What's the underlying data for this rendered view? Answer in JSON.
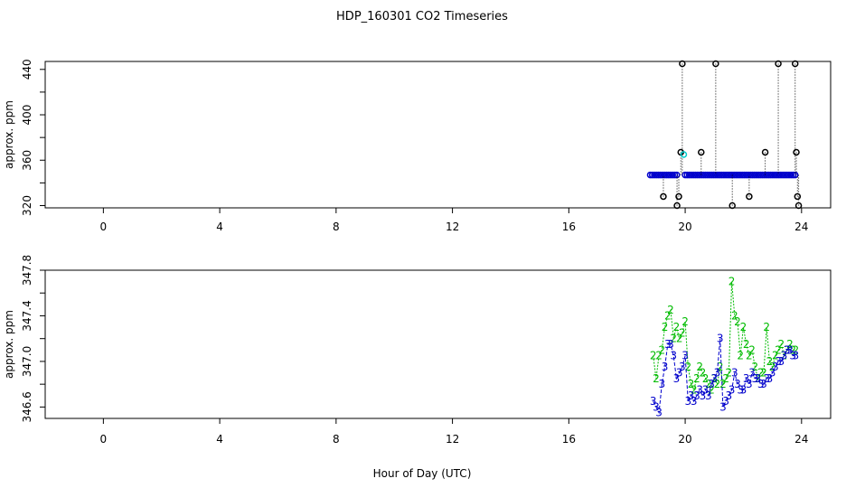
{
  "title": "HDP_160301  CO2 Timeseries",
  "xlabel": "Hour of Day (UTC)",
  "chart_data": [
    {
      "type": "scatter",
      "ylabel": "approx. ppm",
      "xlim": [
        -2,
        25
      ],
      "ylim": [
        318,
        447
      ],
      "xticks": [
        0,
        4,
        8,
        12,
        16,
        20,
        24
      ],
      "yticks": [
        320,
        360,
        400,
        440
      ],
      "ytick_minor": [
        340,
        380,
        420
      ],
      "series": [
        {
          "color": "#0000cc",
          "marker": "circle",
          "x": [
            18.8,
            18.87,
            18.94,
            19.01,
            19.08,
            19.15,
            19.22,
            19.29,
            19.36,
            19.43,
            19.5,
            19.57,
            19.64,
            19.71,
            20.0,
            20.07,
            20.14,
            20.21,
            20.28,
            20.35,
            20.42,
            20.49,
            20.56,
            20.63,
            20.7,
            20.77,
            20.84,
            20.91,
            20.98,
            21.05,
            21.12,
            21.19,
            21.26,
            21.33,
            21.4,
            21.47,
            21.54,
            21.61,
            21.68,
            21.75,
            21.82,
            21.89,
            21.96,
            22.03,
            22.1,
            22.17,
            22.24,
            22.31,
            22.38,
            22.45,
            22.52,
            22.59,
            22.66,
            22.73,
            22.8,
            22.87,
            22.94,
            23.01,
            23.08,
            23.15,
            23.22,
            23.29,
            23.36,
            23.43,
            23.5,
            23.57,
            23.64,
            23.71,
            23.78
          ],
          "y": [
            347,
            347,
            347,
            347,
            347,
            347,
            347,
            347,
            347,
            347,
            347,
            347,
            347,
            347,
            347,
            347,
            347,
            347,
            347,
            347,
            347,
            347,
            347,
            347,
            347,
            347,
            347,
            347,
            347,
            347,
            347,
            347,
            347,
            347,
            347,
            347,
            347,
            347,
            347,
            347,
            347,
            347,
            347,
            347,
            347,
            347,
            347,
            347,
            347,
            347,
            347,
            347,
            347,
            347,
            347,
            347,
            347,
            347,
            347,
            347,
            347,
            347,
            347,
            347,
            347,
            347,
            347,
            347,
            347
          ]
        },
        {
          "color": "#000000",
          "marker": "circle",
          "x": [
            19.25,
            19.72,
            19.78,
            19.85,
            19.9,
            20.55,
            21.05,
            21.62,
            22.2,
            22.75,
            23.2,
            23.78,
            23.82,
            23.86,
            23.9
          ],
          "y": [
            328,
            320,
            328,
            367,
            445,
            367,
            445,
            320,
            328,
            367,
            445,
            445,
            367,
            328,
            320
          ]
        },
        {
          "color": "#00cccc",
          "marker": "circle",
          "x": [
            19.95
          ],
          "y": [
            365
          ]
        }
      ]
    },
    {
      "type": "line",
      "ylabel": "approx. ppm",
      "xlim": [
        -2,
        25
      ],
      "ylim": [
        346.5,
        347.8
      ],
      "xticks": [
        0,
        4,
        8,
        12,
        16,
        20,
        24
      ],
      "yticks": [
        346.6,
        347.0,
        347.4,
        347.8
      ],
      "ytick_minor": [
        346.8,
        347.2,
        347.6
      ],
      "series": [
        {
          "name": "2",
          "color": "#00bb00",
          "x": [
            18.9,
            19.0,
            19.1,
            19.2,
            19.3,
            19.4,
            19.5,
            19.6,
            19.7,
            19.8,
            19.9,
            20.0,
            20.1,
            20.2,
            20.3,
            20.4,
            20.5,
            20.6,
            20.7,
            20.8,
            20.9,
            21.0,
            21.1,
            21.2,
            21.3,
            21.4,
            21.5,
            21.6,
            21.7,
            21.8,
            21.9,
            22.0,
            22.1,
            22.2,
            22.3,
            22.4,
            22.5,
            22.6,
            22.7,
            22.8,
            22.9,
            23.0,
            23.1,
            23.2,
            23.3,
            23.4,
            23.5,
            23.6,
            23.7,
            23.8
          ],
          "y": [
            347.05,
            346.85,
            347.05,
            347.1,
            347.3,
            347.4,
            347.45,
            347.2,
            347.3,
            347.2,
            347.25,
            347.35,
            346.95,
            346.8,
            346.75,
            346.85,
            346.95,
            346.9,
            346.85,
            346.8,
            346.75,
            346.85,
            346.8,
            346.95,
            346.8,
            346.85,
            346.9,
            347.7,
            347.4,
            347.35,
            347.05,
            347.3,
            347.15,
            347.05,
            347.1,
            346.95,
            346.85,
            346.9,
            346.9,
            347.3,
            347.0,
            346.95,
            347.05,
            347.1,
            347.15,
            347.05,
            347.1,
            347.15,
            347.1,
            347.1
          ]
        },
        {
          "name": "3",
          "color": "#0000cc",
          "x": [
            18.9,
            19.0,
            19.1,
            19.2,
            19.3,
            19.4,
            19.5,
            19.6,
            19.7,
            19.8,
            19.9,
            20.0,
            20.1,
            20.2,
            20.3,
            20.4,
            20.5,
            20.6,
            20.7,
            20.8,
            20.9,
            21.0,
            21.1,
            21.2,
            21.3,
            21.4,
            21.5,
            21.6,
            21.7,
            21.8,
            21.9,
            22.0,
            22.1,
            22.2,
            22.3,
            22.4,
            22.5,
            22.6,
            22.7,
            22.8,
            22.9,
            23.0,
            23.1,
            23.2,
            23.3,
            23.4,
            23.5,
            23.6,
            23.7,
            23.8
          ],
          "y": [
            346.65,
            346.6,
            346.55,
            346.8,
            346.95,
            347.15,
            347.15,
            347.05,
            346.85,
            346.9,
            346.95,
            347.05,
            346.65,
            346.7,
            346.65,
            346.7,
            346.75,
            346.7,
            346.75,
            346.7,
            346.8,
            346.85,
            346.9,
            347.2,
            346.6,
            346.65,
            346.7,
            346.75,
            346.9,
            346.8,
            346.75,
            346.75,
            346.85,
            346.8,
            346.9,
            346.85,
            346.85,
            346.8,
            346.8,
            346.85,
            346.85,
            346.9,
            346.95,
            347.0,
            347.0,
            347.05,
            347.1,
            347.1,
            347.05,
            347.05
          ]
        }
      ]
    }
  ]
}
